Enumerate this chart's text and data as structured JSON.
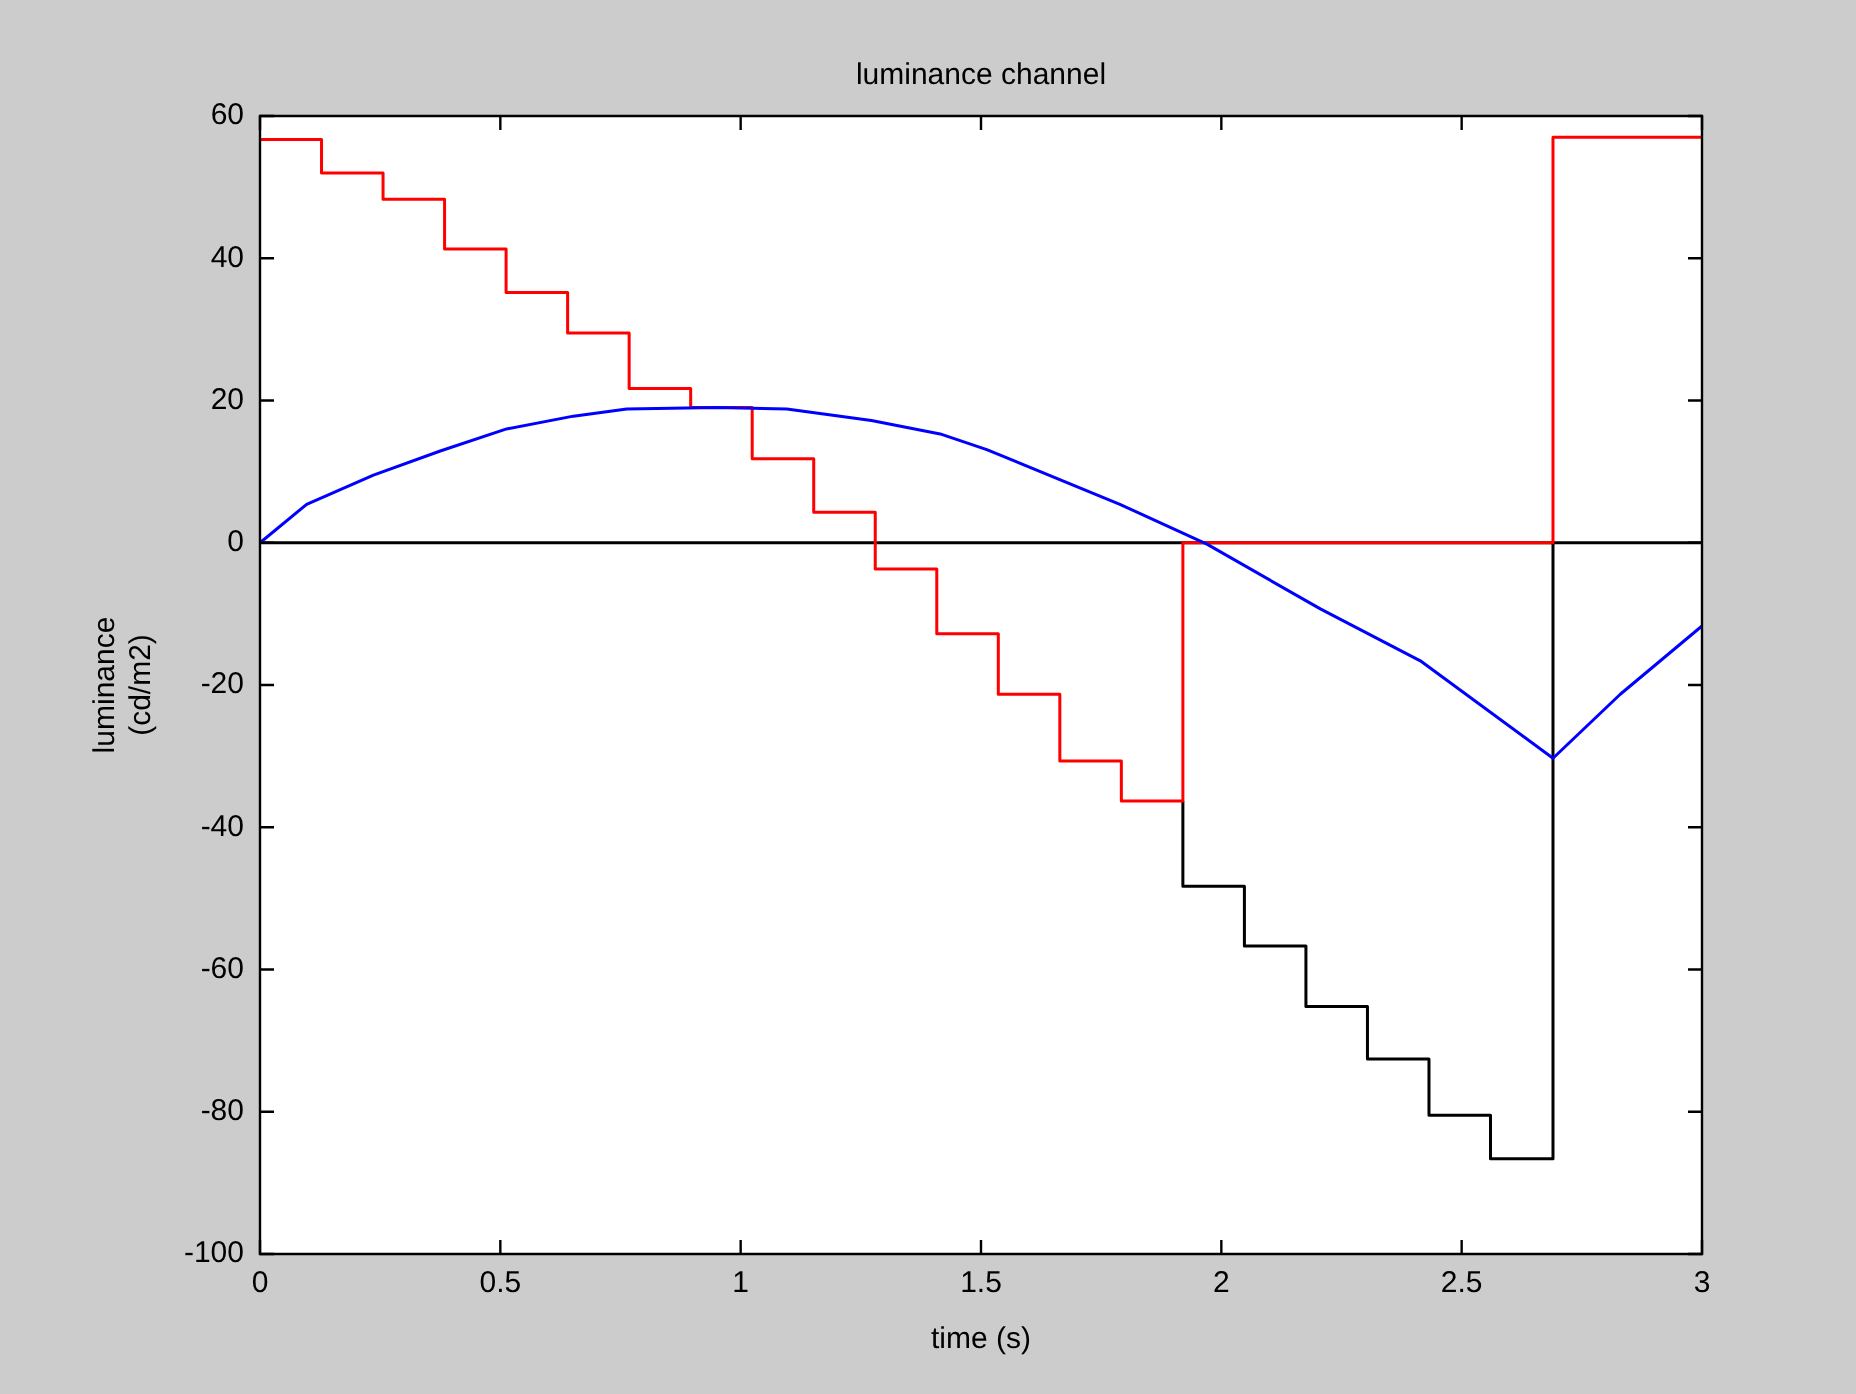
{
  "chart_data": {
    "type": "line",
    "title": "luminance channel",
    "xlabel": "time (s)",
    "ylabel": "luminance (cd/m2)",
    "xlim": [
      0,
      3
    ],
    "xticks": [
      0,
      0.5,
      1,
      1.5,
      2,
      2.5,
      3
    ],
    "ylim": [
      -100,
      60
    ],
    "yticks": [
      -100,
      -80,
      -60,
      -40,
      -20,
      0,
      20,
      40,
      60
    ],
    "legend": false,
    "marker": "none",
    "line_style": "solid",
    "ref_lines": [
      {
        "axis": "y",
        "value": 0,
        "color": "#000000"
      }
    ],
    "series": [
      {
        "type": "step",
        "color": "#ff0000",
        "x": [
          0,
          0.128,
          0.256,
          0.384,
          0.512,
          0.64,
          0.768,
          0.896,
          1.024,
          1.152,
          1.28,
          1.408,
          1.536,
          1.664,
          1.792,
          1.92,
          2.69,
          3
        ],
        "values": [
          56.7,
          52,
          48.3,
          41.3,
          35.2,
          29.5,
          21.7,
          19,
          11.8,
          4.3,
          -3.7,
          -12.8,
          -21.3,
          -30.7,
          -36.3,
          0,
          57,
          57
        ]
      },
      {
        "type": "step",
        "color": "#000000",
        "x": [
          1.92,
          1.92,
          2.048,
          2.176,
          2.304,
          2.432,
          2.56,
          2.69
        ],
        "values": [
          -36.3,
          -48.3,
          -56.7,
          -65.2,
          -72.6,
          -80.5,
          -86.6,
          0
        ]
      },
      {
        "color": "#0000ff",
        "x": [
          0,
          0.097,
          0.236,
          0.375,
          0.513,
          0.652,
          0.763,
          0.95,
          1.096,
          1.272,
          1.415,
          1.512,
          1.789,
          1.97,
          2.206,
          2.414,
          2.69,
          2.83,
          3
        ],
        "values": [
          0,
          5.4,
          9.5,
          12.9,
          16,
          17.8,
          18.8,
          19,
          18.8,
          17.2,
          15.3,
          13.1,
          5.4,
          -0.2,
          -9.3,
          -16.6,
          -30.3,
          -21.3,
          -11.7
        ]
      }
    ]
  }
}
